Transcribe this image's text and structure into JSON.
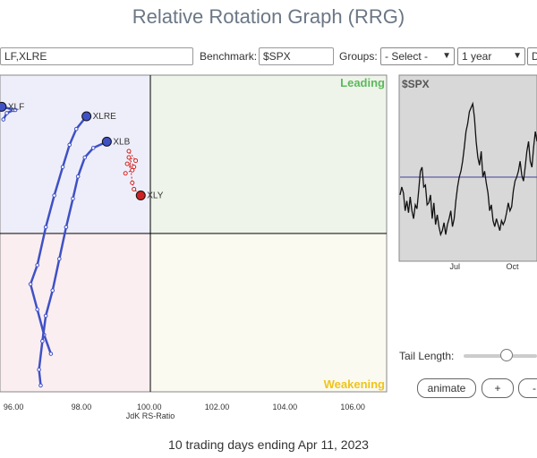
{
  "page": {
    "title": "Relative Rotation Graph (RRG)"
  },
  "toolbar": {
    "symbols_value": "LF,XLRE",
    "benchmark_label": "Benchmark:",
    "benchmark_value": "$SPX",
    "groups_label": "Groups:",
    "groups_value": "- Select -",
    "period_value": "1 year",
    "extra_value": "D"
  },
  "quadrants": {
    "leading": "Leading",
    "weakening": "Weakening",
    "colors": {
      "leading": "#eef4ea",
      "weakening": "#fbfaf1",
      "lagging": "#fbeef1",
      "improving": "#eeeefa"
    },
    "label_colors": {
      "leading": "#5cb85c",
      "weakening": "#f0c419"
    }
  },
  "chart_data": [
    {
      "type": "scatter",
      "xlabel": "JdK RS-Ratio",
      "ylabel": "",
      "x_ticks": [
        "96.00",
        "98.00",
        "100.00",
        "102.00",
        "104.00",
        "106.00"
      ],
      "xlim": [
        95.6,
        107.0
      ],
      "ylim": [
        96.9,
        101.9
      ],
      "center": [
        100,
        100
      ],
      "series": [
        {
          "name": "XLF",
          "color": "#3f51c5",
          "points": [
            [
              95.7,
              101.2
            ],
            [
              95.8,
              101.3
            ],
            [
              96.0,
              101.35
            ],
            [
              96.05,
              101.35
            ],
            [
              95.65,
              101.4
            ]
          ]
        },
        {
          "name": "XLRE",
          "color": "#3f51c5",
          "points": [
            [
              97.1,
              97.5
            ],
            [
              96.9,
              97.8
            ],
            [
              96.7,
              98.2
            ],
            [
              96.5,
              98.6
            ],
            [
              96.7,
              98.9
            ],
            [
              96.95,
              99.5
            ],
            [
              97.2,
              100.0
            ],
            [
              97.45,
              100.45
            ],
            [
              97.65,
              100.8
            ],
            [
              97.85,
              101.05
            ],
            [
              98.15,
              101.25
            ]
          ]
        },
        {
          "name": "XLB",
          "color": "#3f51c5",
          "points": [
            [
              96.8,
              97.0
            ],
            [
              96.75,
              97.25
            ],
            [
              96.85,
              97.7
            ],
            [
              96.95,
              98.1
            ],
            [
              97.15,
              98.5
            ],
            [
              97.35,
              99.0
            ],
            [
              97.55,
              99.5
            ],
            [
              97.75,
              99.95
            ],
            [
              97.9,
              100.3
            ],
            [
              98.1,
              100.6
            ],
            [
              98.35,
              100.75
            ],
            [
              98.75,
              100.85
            ]
          ]
        },
        {
          "name": "XLY",
          "color": "#cc2222",
          "points": [
            [
              99.3,
              100.35
            ],
            [
              99.5,
              100.4
            ],
            [
              99.35,
              100.5
            ],
            [
              99.55,
              100.45
            ],
            [
              99.4,
              100.6
            ],
            [
              99.6,
              100.55
            ],
            [
              99.4,
              100.7
            ],
            [
              99.5,
              100.2
            ],
            [
              99.55,
              100.1
            ],
            [
              99.75,
              100.0
            ]
          ]
        }
      ]
    },
    {
      "type": "line",
      "title": "$SPX",
      "x_ticks": [
        "Jul",
        "Oct"
      ],
      "values": [
        3.78,
        3.82,
        3.79,
        3.7,
        3.75,
        3.69,
        3.77,
        3.7,
        3.66,
        3.73,
        3.71,
        3.8,
        3.9,
        3.92,
        3.82,
        3.83,
        3.73,
        3.74,
        3.78,
        3.66,
        3.74,
        3.63,
        3.68,
        3.62,
        3.58,
        3.6,
        3.64,
        3.58,
        3.63,
        3.66,
        3.7,
        3.62,
        3.66,
        3.75,
        3.82,
        3.87,
        3.9,
        3.95,
        4.02,
        4.1,
        4.14,
        4.2,
        4.22,
        4.24,
        4.17,
        4.05,
        3.97,
        3.93,
        4.0,
        3.87,
        3.9,
        3.84,
        3.79,
        3.7,
        3.73,
        3.65,
        3.62,
        3.66,
        3.63,
        3.6,
        3.65,
        3.63,
        3.65,
        3.69,
        3.74,
        3.7,
        3.72,
        3.8,
        3.85,
        3.87,
        3.9,
        3.95,
        3.88,
        3.85,
        3.92,
        4.0,
        4.05,
        3.95,
        3.92,
        4.02,
        4.1,
        4.05
      ],
      "benchmark_line": 3.87,
      "ylim": [
        3.45,
        4.38
      ]
    }
  ],
  "controls": {
    "tail_length_label": "Tail Length:",
    "tail_length_fraction": 0.58,
    "animate_label": "animate",
    "plus_label": "+",
    "minus_label": "-"
  },
  "footer": {
    "text": "10 trading days ending Apr 11, 2023"
  }
}
